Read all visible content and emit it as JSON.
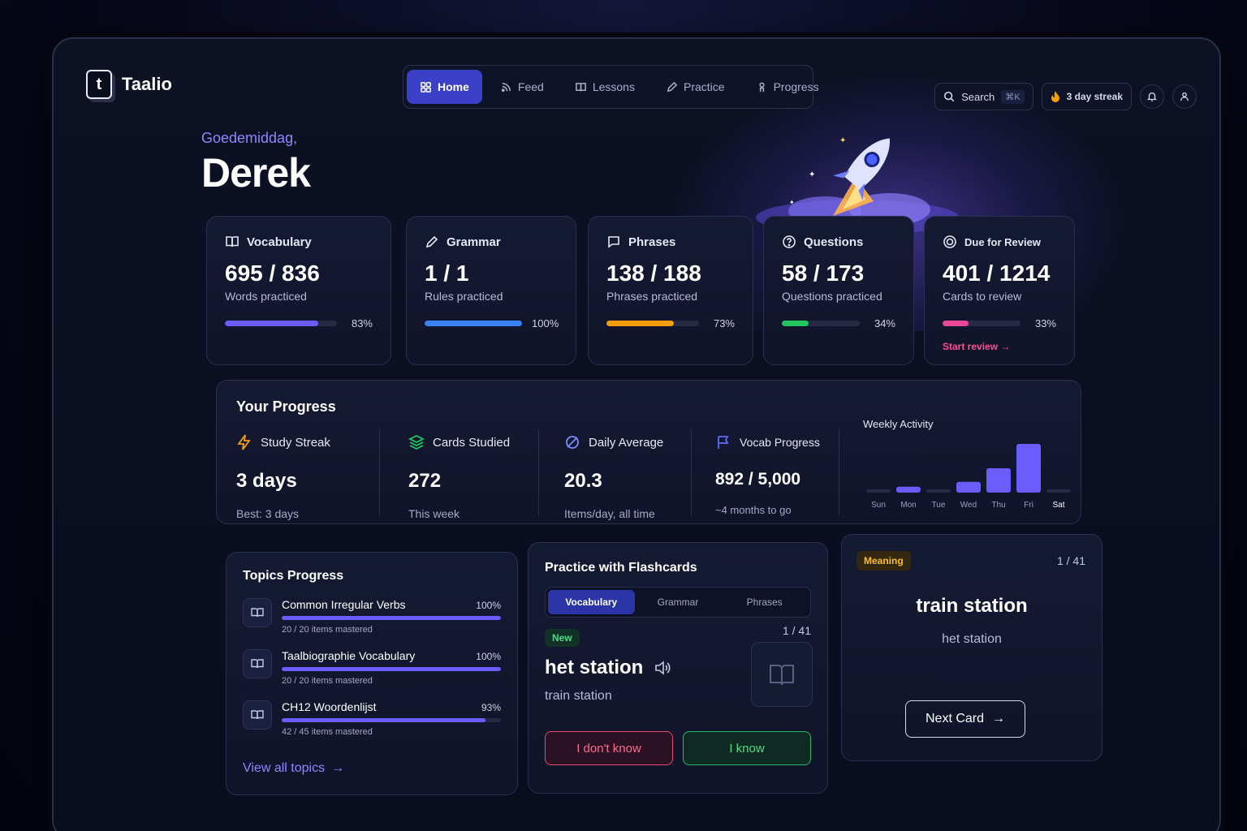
{
  "app": {
    "name": "Taalio",
    "logo_letter": "t"
  },
  "nav": {
    "items": [
      {
        "label": "Home",
        "icon": "grid-icon",
        "active": true
      },
      {
        "label": "Feed",
        "icon": "rss-icon"
      },
      {
        "label": "Lessons",
        "icon": "book-icon"
      },
      {
        "label": "Practice",
        "icon": "pencil-icon"
      },
      {
        "label": "Progress",
        "icon": "person-icon"
      }
    ]
  },
  "header": {
    "search_label": "Search",
    "search_shortcut": "⌘K",
    "streak_label": "3 day streak"
  },
  "greeting": {
    "text": "Goedemiddag,",
    "name": "Derek"
  },
  "stats": [
    {
      "title": "Vocabulary",
      "icon": "book-open-icon",
      "value": "695 / 836",
      "sub": "Words practiced",
      "pct_label": "83%",
      "fraction": 0.83,
      "color": "#6b5cff"
    },
    {
      "title": "Grammar",
      "icon": "pencil-icon",
      "value": "1 / 1",
      "sub": "Rules practiced",
      "pct_label": "100%",
      "fraction": 1.0,
      "color": "#3b82f6"
    },
    {
      "title": "Phrases",
      "icon": "chat-icon",
      "value": "138 / 188",
      "sub": "Phrases practiced",
      "pct_label": "73%",
      "fraction": 0.73,
      "color": "#f59e0b"
    },
    {
      "title": "Questions",
      "icon": "question-icon",
      "value": "58 / 173",
      "sub": "Questions practiced",
      "pct_label": "34%",
      "fraction": 0.34,
      "color": "#22c55e"
    },
    {
      "title": "Due for Review",
      "icon": "target-icon",
      "value": "401 / 1214",
      "sub": "Cards to review",
      "pct_label": "33%",
      "fraction": 0.33,
      "color": "#ec4899",
      "action": "Start review"
    }
  ],
  "progress": {
    "title": "Your Progress",
    "metrics": [
      {
        "title": "Study Streak",
        "icon": "lightning-icon",
        "value": "3 days",
        "sub": "Best: 3 days"
      },
      {
        "title": "Cards Studied",
        "icon": "layers-icon",
        "value": "272",
        "sub": "This week"
      },
      {
        "title": "Daily Average",
        "icon": "slash-circle-icon",
        "value": "20.3",
        "sub": "Items/day, all time"
      },
      {
        "title": "Vocab Progress",
        "icon": "flag-icon",
        "value": "892 / 5,000",
        "sub": "~4 months to go"
      }
    ],
    "weekly": {
      "title": "Weekly Activity",
      "days": [
        "Sun",
        "Mon",
        "Tue",
        "Wed",
        "Thu",
        "Fri",
        "Sat"
      ],
      "levels": [
        0.06,
        0.12,
        0.06,
        0.22,
        0.5,
        1.0,
        0.06
      ]
    }
  },
  "topics": {
    "title": "Topics Progress",
    "items": [
      {
        "name": "Common Irregular Verbs",
        "pct_label": "100%",
        "fraction": 1.0,
        "sub": "20 / 20 items mastered"
      },
      {
        "name": "Taalbiographie Vocabulary",
        "pct_label": "100%",
        "fraction": 1.0,
        "sub": "20 / 20 items mastered"
      },
      {
        "name": "CH12 Woordenlijst",
        "pct_label": "93%",
        "fraction": 0.93,
        "sub": "42 / 45 items mastered"
      }
    ],
    "view_all": "View all topics"
  },
  "flashcards": {
    "title": "Practice with Flashcards",
    "tabs": [
      "Vocabulary",
      "Grammar",
      "Phrases"
    ],
    "counter": "1 / 41",
    "badge": "New",
    "word": "het station",
    "translation": "train station",
    "btn_no": "I don't know",
    "btn_yes": "I know"
  },
  "meaning_card": {
    "badge": "Meaning",
    "counter": "1 / 41",
    "word": "train station",
    "translation": "het station",
    "next": "Next Card"
  }
}
